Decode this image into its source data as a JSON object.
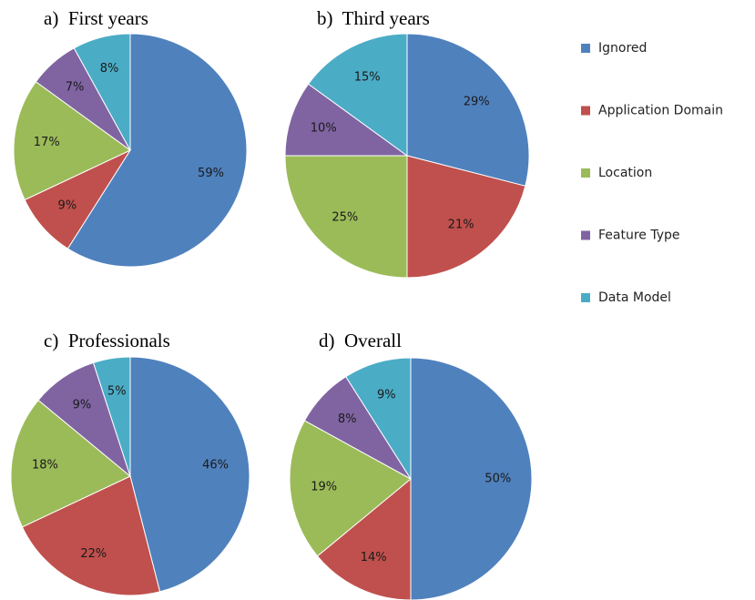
{
  "chart_data": [
    {
      "type": "pie",
      "title": "a)  First years",
      "values": [
        59,
        9,
        17,
        7,
        8
      ],
      "value_labels": [
        "59%",
        "9%",
        "17%",
        "7%",
        "8%"
      ]
    },
    {
      "type": "pie",
      "title": "b)  Third years",
      "values": [
        29,
        21,
        25,
        10,
        15
      ],
      "value_labels": [
        "29%",
        "21%",
        "25%",
        "10%",
        "15%"
      ]
    },
    {
      "type": "pie",
      "title": "c)  Professionals",
      "values": [
        46,
        22,
        18,
        9,
        5
      ],
      "value_labels": [
        "46%",
        "22%",
        "18%",
        "9%",
        "5%"
      ]
    },
    {
      "type": "pie",
      "title": "d)  Overall",
      "values": [
        50,
        14,
        19,
        8,
        9
      ],
      "value_labels": [
        "50%",
        "14%",
        "19%",
        "8%",
        "9%"
      ]
    }
  ],
  "legend": {
    "labels": [
      "Ignored",
      "Application Domain",
      "Location",
      "Feature Type",
      "Data Model"
    ],
    "colors": [
      "#4f81bd",
      "#c0504d",
      "#9bbb59",
      "#8064a2",
      "#4bacc6"
    ]
  }
}
